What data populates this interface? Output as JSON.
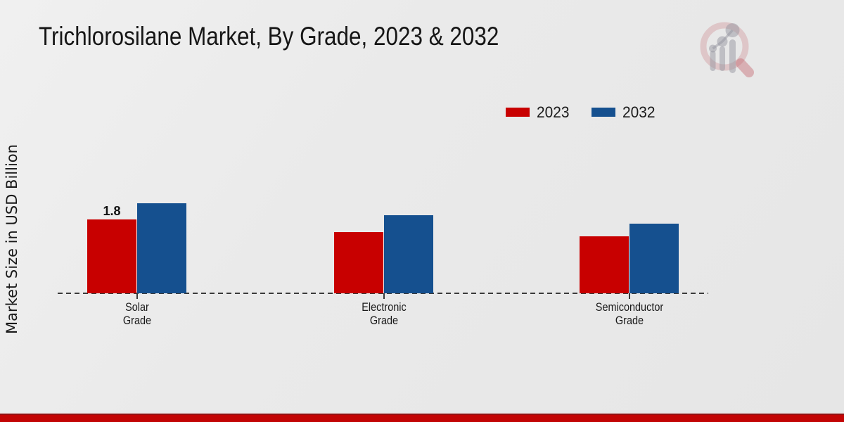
{
  "title": "Trichlorosilane Market, By Grade, 2023 & 2032",
  "y_axis_label": "Market Size in USD Billion",
  "legend": [
    {
      "label": "2023",
      "color": "#c80000"
    },
    {
      "label": "2032",
      "color": "#15508f"
    }
  ],
  "icons": {
    "watermark": "magnifier-growth-chart-icon"
  },
  "footer": {
    "stripe_color": "#c20404"
  },
  "chart_data": {
    "type": "bar",
    "categories": [
      "Solar\nGrade",
      "Electronic\nGrade",
      "Semiconductor\nGrade"
    ],
    "series": [
      {
        "name": "2023",
        "color": "#c80000",
        "values": [
          1.8,
          1.5,
          1.4
        ]
      },
      {
        "name": "2032",
        "color": "#15508f",
        "values": [
          2.2,
          1.9,
          1.7
        ]
      }
    ],
    "title": "Trichlorosilane Market, By Grade, 2023 & 2032",
    "xlabel": "",
    "ylabel": "Market Size in USD Billion",
    "ylim": [
      0,
      2.5
    ],
    "grid": false,
    "axis_line": "dashed-baseline-only",
    "legend_position": "top-right",
    "annotations": [
      {
        "series": "2023",
        "category_index": 0,
        "text": "1.8"
      }
    ]
  }
}
